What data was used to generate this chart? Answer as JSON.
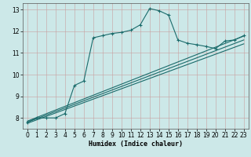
{
  "xlabel": "Humidex (Indice chaleur)",
  "xlim": [
    -0.5,
    23.5
  ],
  "ylim": [
    7.5,
    13.3
  ],
  "xticks": [
    0,
    1,
    2,
    3,
    4,
    5,
    6,
    7,
    8,
    9,
    10,
    11,
    12,
    13,
    14,
    15,
    16,
    17,
    18,
    19,
    20,
    21,
    22,
    23
  ],
  "yticks": [
    8,
    9,
    10,
    11,
    12,
    13
  ],
  "bg_color": "#cce8e8",
  "grid_color": "#b8d0d0",
  "line_color": "#1a6b6b",
  "curve1_x": [
    0,
    1,
    2,
    3,
    4,
    5,
    6,
    7,
    8,
    9,
    10,
    11,
    12,
    13,
    14,
    15,
    16,
    17,
    18,
    19,
    20,
    21,
    22,
    23
  ],
  "curve1_y": [
    7.8,
    8.0,
    8.0,
    8.0,
    8.2,
    9.5,
    9.7,
    11.7,
    11.8,
    11.9,
    11.95,
    12.05,
    12.3,
    13.05,
    12.95,
    12.75,
    11.6,
    11.45,
    11.38,
    11.3,
    11.2,
    11.55,
    11.6,
    11.8
  ],
  "line1_x": [
    0,
    23
  ],
  "line1_y": [
    7.85,
    11.78
  ],
  "line2_x": [
    0,
    23
  ],
  "line2_y": [
    7.8,
    11.6
  ],
  "line3_x": [
    0,
    23
  ],
  "line3_y": [
    7.75,
    11.42
  ]
}
